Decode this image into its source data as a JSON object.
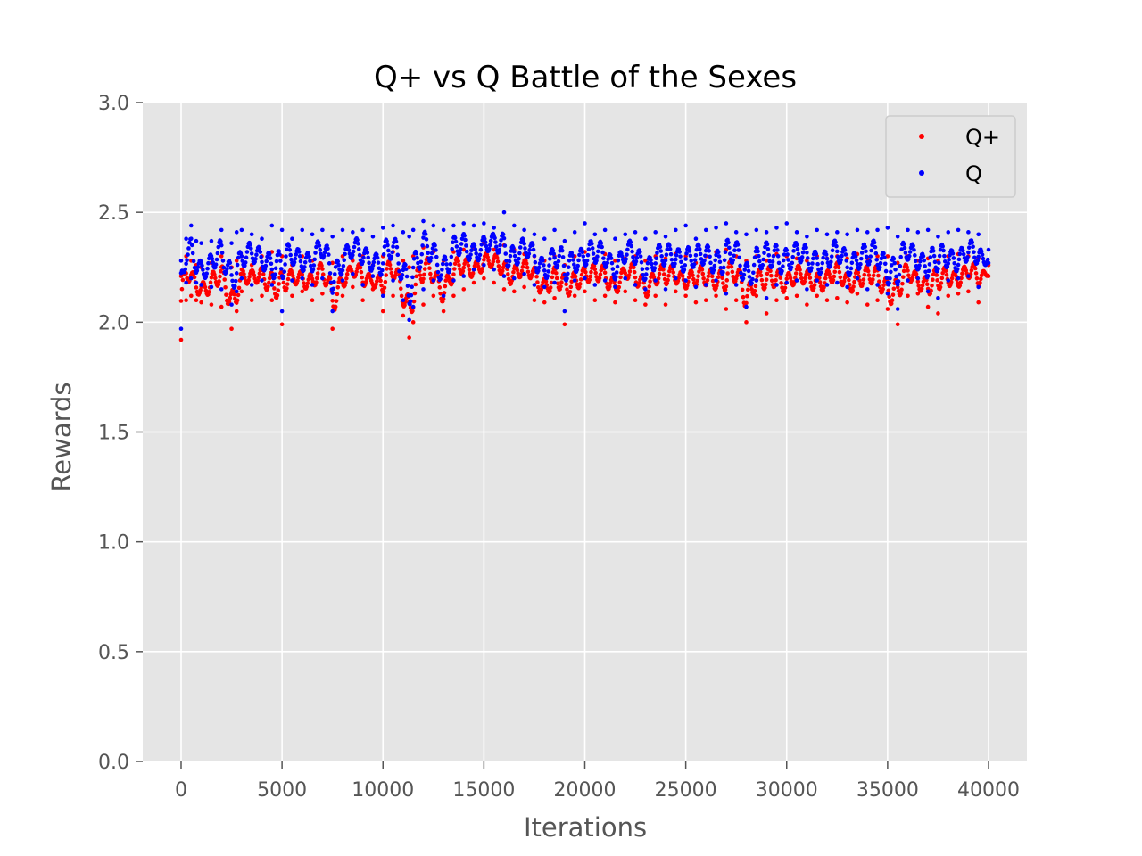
{
  "chart_data": {
    "type": "scatter",
    "title": "Q+ vs Q Battle of the Sexes",
    "xlabel": "Iterations",
    "ylabel": "Rewards",
    "xlim": [
      -1900,
      41900
    ],
    "ylim": [
      0.0,
      3.0
    ],
    "xticks": [
      0,
      5000,
      10000,
      15000,
      20000,
      25000,
      30000,
      35000,
      40000
    ],
    "yticks": [
      0.0,
      0.5,
      1.0,
      1.5,
      2.0,
      2.5,
      3.0
    ],
    "ytick_labels": [
      "0.0",
      "0.5",
      "1.0",
      "1.5",
      "2.0",
      "2.5",
      "3.0"
    ],
    "grid": true,
    "legend_position": "top-right",
    "background": "#e5e5e5",
    "series": [
      {
        "name": "Q+",
        "color": "#ff0000",
        "x": [
          0,
          250,
          500,
          750,
          1000,
          1500,
          2000,
          2500,
          2750,
          3000,
          3500,
          4000,
          4500,
          5000,
          5500,
          6000,
          6500,
          7000,
          7500,
          8000,
          8500,
          9000,
          9500,
          10000,
          10500,
          11000,
          11300,
          11500,
          12000,
          12500,
          13000,
          13500,
          14000,
          14500,
          15000,
          15500,
          16000,
          16500,
          17000,
          17500,
          18000,
          18500,
          19000,
          19500,
          20000,
          20500,
          21000,
          21500,
          22000,
          22500,
          23000,
          23500,
          24000,
          24500,
          25000,
          25500,
          26000,
          26500,
          27000,
          27500,
          28000,
          28500,
          29000,
          29500,
          30000,
          30500,
          31000,
          31500,
          32000,
          32500,
          33000,
          33500,
          34000,
          34500,
          35000,
          35500,
          36000,
          36500,
          37000,
          37500,
          38000,
          38500,
          39000,
          39500,
          40000
        ],
        "y_min": [
          1.92,
          2.1,
          2.12,
          2.1,
          2.09,
          2.08,
          2.07,
          1.97,
          2.05,
          2.14,
          2.1,
          2.12,
          2.1,
          1.99,
          2.12,
          2.14,
          2.1,
          2.13,
          1.97,
          2.12,
          2.16,
          2.1,
          2.15,
          2.05,
          2.12,
          2.03,
          1.93,
          2.0,
          2.08,
          2.12,
          2.05,
          2.12,
          2.15,
          2.18,
          2.2,
          2.18,
          2.15,
          2.14,
          2.16,
          2.1,
          2.09,
          2.11,
          1.99,
          2.12,
          2.14,
          2.1,
          2.12,
          2.09,
          2.14,
          2.1,
          2.08,
          2.12,
          2.08,
          2.14,
          2.12,
          2.09,
          2.1,
          2.12,
          2.06,
          2.1,
          2.0,
          2.12,
          2.04,
          2.1,
          2.11,
          2.12,
          2.08,
          2.12,
          2.1,
          2.11,
          2.09,
          2.13,
          2.08,
          2.1,
          2.06,
          1.99,
          2.12,
          2.13,
          2.07,
          2.04,
          2.12,
          2.13,
          2.14,
          2.09,
          2.21
        ],
        "y_max": [
          2.21,
          2.3,
          2.28,
          2.26,
          2.25,
          2.27,
          2.3,
          2.25,
          2.28,
          2.3,
          2.26,
          2.3,
          2.32,
          2.3,
          2.26,
          2.3,
          2.28,
          2.3,
          2.27,
          2.3,
          2.28,
          2.3,
          2.26,
          2.3,
          2.32,
          2.28,
          2.25,
          2.3,
          2.34,
          2.32,
          2.28,
          2.32,
          2.33,
          2.34,
          2.36,
          2.33,
          2.35,
          2.33,
          2.31,
          2.3,
          2.28,
          2.3,
          2.26,
          2.3,
          2.32,
          2.29,
          2.31,
          2.28,
          2.29,
          2.3,
          2.28,
          2.3,
          2.29,
          2.31,
          2.3,
          2.27,
          2.3,
          2.32,
          2.33,
          2.3,
          2.28,
          2.3,
          2.28,
          2.31,
          2.3,
          2.29,
          2.28,
          2.3,
          2.29,
          2.3,
          2.29,
          2.31,
          2.29,
          2.3,
          2.3,
          2.27,
          2.3,
          2.28,
          2.29,
          2.28,
          2.3,
          2.31,
          2.3,
          2.29,
          2.26
        ]
      },
      {
        "name": "Q",
        "color": "#0000ff",
        "x": [
          0,
          250,
          500,
          750,
          1000,
          1500,
          2000,
          2500,
          2750,
          3000,
          3500,
          4000,
          4500,
          5000,
          5500,
          6000,
          6500,
          7000,
          7500,
          8000,
          8500,
          9000,
          9500,
          10000,
          10500,
          11000,
          11300,
          11500,
          12000,
          12500,
          13000,
          13500,
          14000,
          14500,
          15000,
          15500,
          16000,
          16500,
          17000,
          17500,
          18000,
          18500,
          19000,
          19500,
          20000,
          20500,
          21000,
          21500,
          22000,
          22500,
          23000,
          23500,
          24000,
          24500,
          25000,
          25500,
          26000,
          26500,
          27000,
          27500,
          28000,
          28500,
          29000,
          29500,
          30000,
          30500,
          31000,
          31500,
          32000,
          32500,
          33000,
          33500,
          34000,
          34500,
          35000,
          35500,
          36000,
          36500,
          37000,
          37500,
          38000,
          38500,
          39000,
          39500,
          40000
        ],
        "y_min": [
          1.97,
          2.18,
          2.2,
          2.18,
          2.17,
          2.16,
          2.15,
          2.08,
          2.14,
          2.2,
          2.17,
          2.19,
          2.17,
          2.05,
          2.19,
          2.2,
          2.17,
          2.2,
          2.05,
          2.19,
          2.22,
          2.17,
          2.21,
          2.12,
          2.19,
          2.1,
          2.01,
          2.07,
          2.15,
          2.19,
          2.12,
          2.19,
          2.21,
          2.24,
          2.26,
          2.24,
          2.21,
          2.2,
          2.22,
          2.17,
          2.16,
          2.18,
          2.05,
          2.19,
          2.2,
          2.17,
          2.19,
          2.16,
          2.2,
          2.17,
          2.15,
          2.19,
          2.15,
          2.2,
          2.19,
          2.16,
          2.17,
          2.19,
          2.13,
          2.17,
          2.07,
          2.19,
          2.11,
          2.17,
          2.18,
          2.19,
          2.15,
          2.19,
          2.17,
          2.18,
          2.16,
          2.2,
          2.15,
          2.17,
          2.13,
          2.06,
          2.19,
          2.2,
          2.14,
          2.11,
          2.19,
          2.2,
          2.21,
          2.16,
          2.27
        ],
        "y_max": [
          2.28,
          2.38,
          2.44,
          2.37,
          2.36,
          2.37,
          2.42,
          2.36,
          2.41,
          2.42,
          2.4,
          2.38,
          2.44,
          2.42,
          2.38,
          2.42,
          2.4,
          2.42,
          2.39,
          2.42,
          2.41,
          2.42,
          2.39,
          2.43,
          2.44,
          2.41,
          2.39,
          2.42,
          2.46,
          2.44,
          2.42,
          2.44,
          2.45,
          2.44,
          2.45,
          2.43,
          2.5,
          2.44,
          2.42,
          2.4,
          2.38,
          2.42,
          2.37,
          2.41,
          2.45,
          2.4,
          2.42,
          2.38,
          2.4,
          2.41,
          2.38,
          2.41,
          2.39,
          2.42,
          2.44,
          2.38,
          2.42,
          2.43,
          2.45,
          2.41,
          2.4,
          2.42,
          2.41,
          2.43,
          2.45,
          2.41,
          2.39,
          2.42,
          2.4,
          2.41,
          2.4,
          2.42,
          2.41,
          2.42,
          2.43,
          2.39,
          2.42,
          2.41,
          2.42,
          2.39,
          2.41,
          2.42,
          2.41,
          2.4,
          2.33
        ]
      }
    ]
  }
}
